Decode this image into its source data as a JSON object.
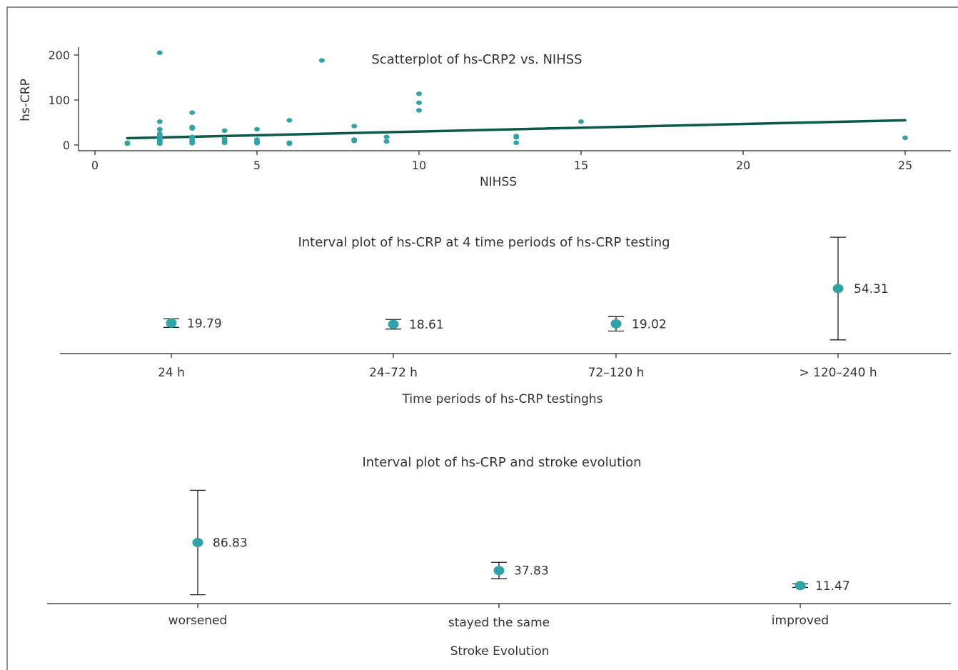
{
  "colors": {
    "point": "#2fa3a6",
    "trend": "#0c5a4a",
    "axis": "#222222",
    "text": "#333333"
  },
  "chart_data": [
    {
      "type": "scatter",
      "title": "Scatterplot of hs-CRP2 vs. NIHSS",
      "xlabel": "NIHSS",
      "ylabel": "hs-CRP",
      "xlim": [
        -0.5,
        26.5
      ],
      "ylim": [
        -12,
        215
      ],
      "xticks": [
        0,
        5,
        10,
        15,
        20,
        25
      ],
      "yticks": [
        0,
        100,
        200
      ],
      "grid": false,
      "points": [
        {
          "x": 1,
          "y": 3
        },
        {
          "x": 1,
          "y": 5
        },
        {
          "x": 2,
          "y": 205
        },
        {
          "x": 2,
          "y": 52
        },
        {
          "x": 2,
          "y": 35
        },
        {
          "x": 2,
          "y": 25
        },
        {
          "x": 2,
          "y": 20
        },
        {
          "x": 2,
          "y": 17
        },
        {
          "x": 2,
          "y": 14
        },
        {
          "x": 2,
          "y": 11
        },
        {
          "x": 2,
          "y": 8
        },
        {
          "x": 2,
          "y": 5
        },
        {
          "x": 2,
          "y": 3
        },
        {
          "x": 3,
          "y": 72
        },
        {
          "x": 3,
          "y": 40
        },
        {
          "x": 3,
          "y": 37
        },
        {
          "x": 3,
          "y": 18
        },
        {
          "x": 3,
          "y": 12
        },
        {
          "x": 3,
          "y": 7
        },
        {
          "x": 3,
          "y": 4
        },
        {
          "x": 4,
          "y": 32
        },
        {
          "x": 4,
          "y": 14
        },
        {
          "x": 4,
          "y": 9
        },
        {
          "x": 4,
          "y": 5
        },
        {
          "x": 5,
          "y": 35
        },
        {
          "x": 5,
          "y": 12
        },
        {
          "x": 5,
          "y": 7
        },
        {
          "x": 5,
          "y": 4
        },
        {
          "x": 6,
          "y": 55
        },
        {
          "x": 6,
          "y": 5
        },
        {
          "x": 6,
          "y": 3
        },
        {
          "x": 7,
          "y": 188
        },
        {
          "x": 8,
          "y": 42
        },
        {
          "x": 8,
          "y": 12
        },
        {
          "x": 8,
          "y": 9
        },
        {
          "x": 9,
          "y": 18
        },
        {
          "x": 9,
          "y": 8
        },
        {
          "x": 10,
          "y": 114
        },
        {
          "x": 10,
          "y": 94
        },
        {
          "x": 10,
          "y": 77
        },
        {
          "x": 13,
          "y": 20
        },
        {
          "x": 13,
          "y": 17
        },
        {
          "x": 13,
          "y": 5
        },
        {
          "x": 15,
          "y": 52
        },
        {
          "x": 25,
          "y": 16
        }
      ],
      "trend_line": {
        "x": [
          1,
          25
        ],
        "y": [
          15,
          55
        ]
      }
    },
    {
      "type": "interval",
      "title": "Interval plot of hs-CRP at 4 time periods of hs-CRP testing",
      "xlabel": "Time periods of hs-CRP testinghs",
      "ylabel": "",
      "ylim": [
        -10,
        90
      ],
      "categories": [
        "24 h",
        "24–72 h",
        "72–120 h",
        "> 120–240 h"
      ],
      "means": [
        19.79,
        18.61,
        19.02,
        54.31
      ],
      "mean_labels": [
        "19.79",
        "18.61",
        "19.02",
        "54.31"
      ],
      "lower": [
        15.5,
        13.8,
        11.8,
        3.0
      ],
      "upper": [
        24.1,
        23.4,
        26.2,
        105.6
      ]
    },
    {
      "type": "interval",
      "title": "Interval plot of hs-CRP and stroke evolution",
      "xlabel": "Stroke Evolution",
      "ylabel": "",
      "ylim": [
        -10,
        190
      ],
      "categories": [
        "worsened",
        "stayed the same",
        "improved"
      ],
      "means": [
        86.83,
        37.83,
        11.47
      ],
      "mean_labels": [
        "86.83",
        "37.83",
        "11.47"
      ],
      "lower": [
        -4.5,
        23.5,
        8.2
      ],
      "upper": [
        178.2,
        52.2,
        14.7
      ]
    }
  ]
}
